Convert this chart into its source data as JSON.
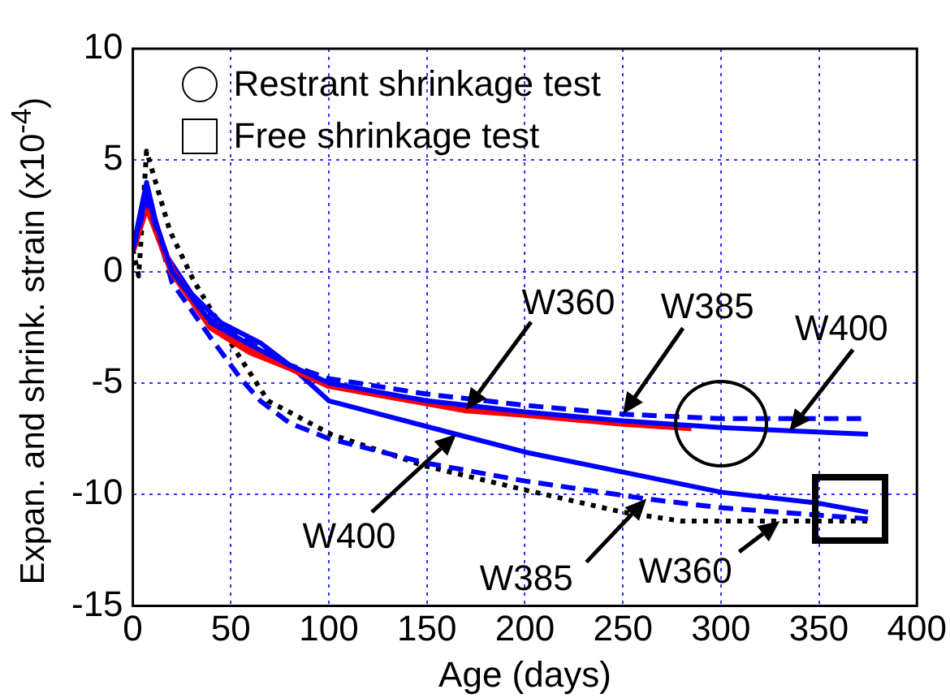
{
  "chart_data": {
    "type": "line",
    "xlabel": "Age (days)",
    "ylabel": "Expan. and shrink. strain (x10$^{-4}$)",
    "xlim": [
      0,
      400
    ],
    "xticks": [
      0,
      50,
      100,
      150,
      200,
      250,
      300,
      350,
      400
    ],
    "ylim": [
      -15,
      10
    ],
    "yticks": [
      -15,
      -10,
      -5,
      0,
      5,
      10
    ],
    "grid": true,
    "marker": "none",
    "annotations": [
      "Restrant shrinkage test",
      "Free shrinkage test",
      {
        "text": "W400",
        "x": 335,
        "y": -7.15
      },
      {
        "text": "W385",
        "x": 250,
        "y": -6.4
      },
      {
        "text": "W360",
        "x": 170,
        "y": -6.2
      },
      {
        "text": "W400",
        "x": 165,
        "y": -7.3
      },
      {
        "text": "W385",
        "x": 262,
        "y": -10.2
      },
      {
        "text": "W360",
        "x": 330,
        "y": -11.2
      }
    ],
    "series": [
      {
        "color": "#0000ff",
        "line_style": "solid",
        "x": [
          0,
          7,
          20,
          40,
          60,
          80,
          100,
          150,
          200,
          250,
          300,
          335,
          375
        ],
        "values": [
          1,
          3.5,
          0,
          -2.3,
          -3.3,
          -4.2,
          -5.0,
          -5.8,
          -6.3,
          -6.7,
          -7.0,
          -7.15,
          -7.3
        ]
      },
      {
        "color": "#0000ff",
        "line_style": "dashed",
        "x": [
          0,
          7,
          20,
          40,
          60,
          80,
          100,
          150,
          200,
          250,
          300,
          375
        ],
        "values": [
          1,
          3.2,
          0,
          -2.2,
          -3.2,
          -4.2,
          -4.8,
          -5.5,
          -6.0,
          -6.4,
          -6.6,
          -6.6
        ]
      },
      {
        "color": "#ff0000",
        "line_style": "solid",
        "x": [
          0,
          7,
          20,
          40,
          60,
          80,
          100,
          170,
          200,
          250,
          285
        ],
        "values": [
          1,
          3,
          0,
          -2.5,
          -3.6,
          -4.3,
          -5.1,
          -6.2,
          -6.4,
          -6.8,
          -7.0
        ]
      },
      {
        "color": "#0000ff",
        "line_style": "solid",
        "x": [
          0,
          7,
          15,
          30,
          45,
          65,
          80,
          100,
          165,
          200,
          250,
          300,
          350,
          375
        ],
        "values": [
          1,
          4,
          1,
          -1,
          -2.3,
          -3.2,
          -4.2,
          -5.8,
          -7.3,
          -8.1,
          -9.0,
          -9.9,
          -10.4,
          -10.8
        ]
      },
      {
        "color": "#0000ff",
        "line_style": "dashed",
        "x": [
          0,
          7,
          20,
          40,
          55,
          65,
          80,
          100,
          150,
          200,
          262,
          300,
          375
        ],
        "values": [
          1,
          3.5,
          -0.5,
          -3,
          -4.8,
          -5.8,
          -6.8,
          -7.5,
          -8.6,
          -9.4,
          -10.2,
          -10.6,
          -11.1
        ]
      },
      {
        "color": "#000000",
        "line_style": "dotted",
        "x": [
          0,
          3,
          7,
          19,
          31,
          52,
          69,
          101,
          148,
          200,
          250,
          280,
          330,
          375
        ],
        "values": [
          1,
          -0.2,
          5.4,
          1.8,
          -0.4,
          -3.5,
          -5.8,
          -7.3,
          -8.7,
          -9.8,
          -10.8,
          -11.2,
          -11.2,
          -11.2
        ]
      }
    ]
  }
}
